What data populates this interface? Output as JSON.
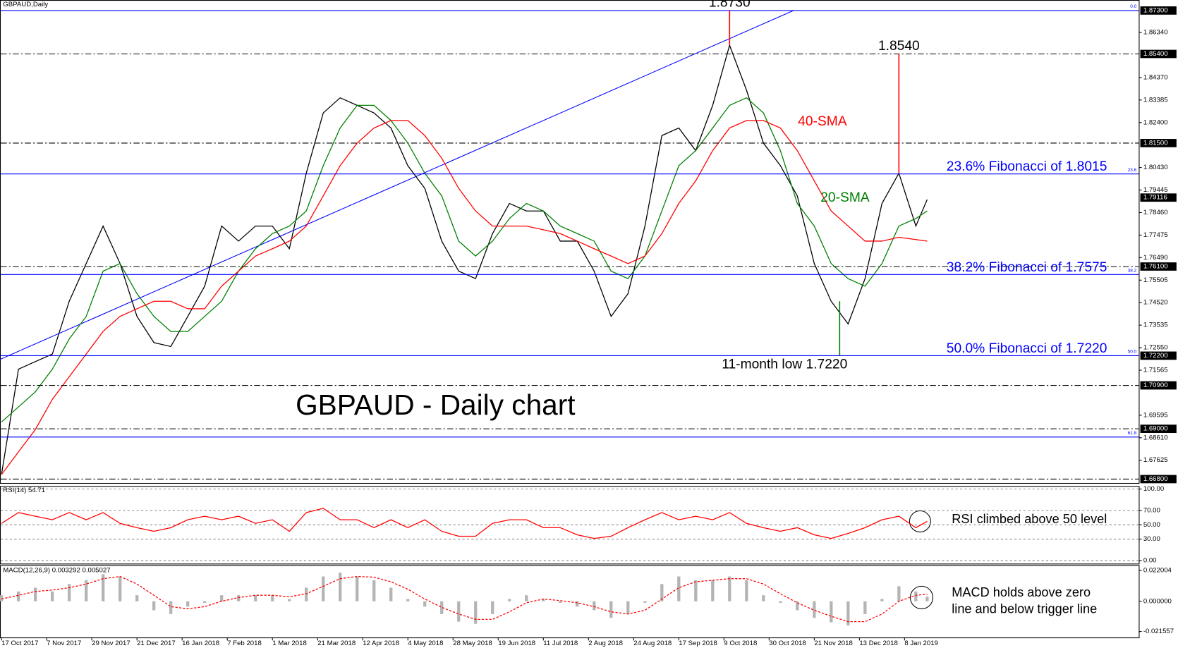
{
  "chart_data": [
    {
      "type": "line",
      "title": "GBPAUD - Daily chart",
      "subtitle": "GBPAUD,Daily",
      "x": [
        0,
        6,
        12,
        18,
        24,
        30,
        36,
        42,
        48,
        54,
        60,
        66,
        72,
        78,
        84,
        90,
        96,
        102,
        108,
        114,
        120,
        126,
        132,
        138,
        144,
        150,
        156,
        162,
        168,
        174,
        180,
        186,
        192,
        198,
        204,
        210,
        216,
        222,
        228,
        234,
        240,
        246,
        252,
        258,
        264,
        270,
        276,
        282,
        288,
        294,
        300,
        306,
        312,
        318,
        324,
        328
      ],
      "xlim": [
        0,
        403
      ],
      "xticks": [
        {
          "value": 0,
          "label": "17 Oct 2017"
        },
        {
          "value": 16,
          "label": "7 Nov 2017"
        },
        {
          "value": 32,
          "label": "29 Nov 2017"
        },
        {
          "value": 48,
          "label": "21 Dec 2017"
        },
        {
          "value": 64,
          "label": "16 Jan 2018"
        },
        {
          "value": 80,
          "label": "7 Feb 2018"
        },
        {
          "value": 96,
          "label": "1 Mar 2018"
        },
        {
          "value": 112,
          "label": "21 Mar 2018"
        },
        {
          "value": 128,
          "label": "12 Apr 2018"
        },
        {
          "value": 144,
          "label": "4 May 2018"
        },
        {
          "value": 160,
          "label": "28 May 2018"
        },
        {
          "value": 176,
          "label": "19 Jun 2018"
        },
        {
          "value": 192,
          "label": "11 Jul 2018"
        },
        {
          "value": 208,
          "label": "2 Aug 2018"
        },
        {
          "value": 224,
          "label": "24 Aug 2018"
        },
        {
          "value": 240,
          "label": "17 Sep 2018"
        },
        {
          "value": 256,
          "label": "9 Oct 2018"
        },
        {
          "value": 272,
          "label": "30 Oct 2018"
        },
        {
          "value": 288,
          "label": "21 Nov 2018"
        },
        {
          "value": 304,
          "label": "13 Dec 2018"
        },
        {
          "value": 320,
          "label": "8 Jan 2019"
        }
      ],
      "ylim": [
        1.6663,
        1.8776
      ],
      "yticks": [
        {
          "value": 1.8634,
          "label": "1.86340"
        },
        {
          "value": 1.8437,
          "label": "1.84370"
        },
        1.83385,
        {
          "value": 1.824,
          "label": "1.82400"
        },
        {
          "value": 1.8043,
          "label": "1.80430"
        },
        1.79445,
        {
          "value": 1.7846,
          "label": "1.78460"
        },
        1.77475,
        {
          "value": 1.7649,
          "label": "1.76490"
        },
        1.75505,
        {
          "value": 1.7452,
          "label": "1.74520"
        },
        1.73535,
        {
          "value": 1.7255,
          "label": "1.72550"
        },
        1.71565,
        1.69595,
        {
          "value": 1.6861,
          "label": "1.68610"
        },
        1.67625
      ],
      "series": [
        {
          "color": "#000000",
          "values": [
            1.67,
            1.7161,
            1.7194,
            1.7227,
            1.7458,
            1.7623,
            1.7787,
            1.7623,
            1.7392,
            1.7277,
            1.726,
            1.7392,
            1.7524,
            1.7787,
            1.7721,
            1.7787,
            1.7787,
            1.7688,
            1.8018,
            1.8282,
            1.8348,
            1.8315,
            1.8282,
            1.8216,
            1.8051,
            1.7952,
            1.7721,
            1.759,
            1.7557,
            1.7754,
            1.7886,
            1.7853,
            1.7853,
            1.7721,
            1.7721,
            1.759,
            1.7392,
            1.7491,
            1.7787,
            1.8183,
            1.8216,
            1.8117,
            1.8315,
            1.8578,
            1.8381,
            1.815,
            1.8051,
            1.7919,
            1.7623,
            1.7458,
            1.7359,
            1.7557,
            1.7886,
            1.8018,
            1.7787,
            1.7903
          ]
        },
        {
          "name": "20-SMA",
          "color": "#008000",
          "values": [
            1.693,
            1.6996,
            1.7062,
            1.7161,
            1.7293,
            1.7392,
            1.759,
            1.7623,
            1.7491,
            1.7392,
            1.7326,
            1.7326,
            1.7392,
            1.7458,
            1.759,
            1.7688,
            1.7754,
            1.7787,
            1.7853,
            1.8051,
            1.8216,
            1.8315,
            1.8315,
            1.8249,
            1.815,
            1.8018,
            1.7919,
            1.7721,
            1.7656,
            1.7721,
            1.782,
            1.7886,
            1.7853,
            1.7787,
            1.7754,
            1.7721,
            1.759,
            1.7557,
            1.7656,
            1.7853,
            1.8051,
            1.8117,
            1.8216,
            1.8315,
            1.8348,
            1.8282,
            1.8117,
            1.7886,
            1.7787,
            1.7623,
            1.7557,
            1.7524,
            1.7623,
            1.7787,
            1.782,
            1.7853
          ]
        },
        {
          "name": "40-SMA",
          "color": "#ff0000",
          "values": [
            1.67,
            1.6799,
            1.6897,
            1.7029,
            1.7128,
            1.7227,
            1.7326,
            1.7392,
            1.7425,
            1.7458,
            1.7458,
            1.7425,
            1.7425,
            1.7524,
            1.759,
            1.7656,
            1.7688,
            1.7721,
            1.7787,
            1.7919,
            1.8051,
            1.815,
            1.8216,
            1.8249,
            1.8249,
            1.8183,
            1.8084,
            1.7952,
            1.7853,
            1.7787,
            1.7787,
            1.7787,
            1.7771,
            1.7754,
            1.7721,
            1.7688,
            1.7656,
            1.7623,
            1.7656,
            1.7754,
            1.7886,
            1.7985,
            1.8117,
            1.8216,
            1.8249,
            1.8249,
            1.8216,
            1.8117,
            1.7985,
            1.7853,
            1.7787,
            1.7721,
            1.7721,
            1.7738,
            1.7728,
            1.7721
          ]
        }
      ],
      "levels": [
        {
          "value": 1.854,
          "label": "1.85400"
        },
        {
          "value": 1.815,
          "label": "1.81500"
        },
        {
          "value": 1.761,
          "label": "1.76100"
        },
        {
          "value": 1.709,
          "label": "1.70900"
        },
        {
          "value": 1.69,
          "label": "1.69000"
        },
        {
          "value": 1.668,
          "label": "1.66800"
        }
      ],
      "fibonacci": [
        {
          "level": "0.0",
          "value": 1.873,
          "price_label": "1.87300"
        },
        {
          "level": "23.6",
          "value": 1.8015,
          "label": "23.6% Fibonacci of 1.8015"
        },
        {
          "level": "38.2",
          "value": 1.7575,
          "label": "38.2% Fibonacci of 1.7575"
        },
        {
          "level": "50.0",
          "value": 1.722,
          "label": "50.0% Fibonacci of 1.7220",
          "price_label": "1.72200"
        },
        {
          "level": "61.8",
          "value": 1.6864
        }
      ],
      "last_price": {
        "value": 1.79116,
        "label": "1.79116"
      },
      "extremes": [
        {
          "x": 258,
          "value": 1.873,
          "label": "1.8730"
        },
        {
          "x": 318,
          "value": 1.854,
          "label": "1.8540"
        },
        {
          "x": 297,
          "value": 1.722,
          "label": "11-month low 1.7220"
        }
      ]
    },
    {
      "type": "line",
      "title": "RSI(14) 54.71",
      "ylim": [
        -4.2,
        104.2
      ],
      "yticks": [
        {
          "value": 100,
          "label": "100.00"
        },
        {
          "value": 70,
          "label": "70.00"
        },
        {
          "value": 50,
          "label": "50.00"
        },
        {
          "value": 30,
          "label": "30.00"
        },
        {
          "value": 0,
          "label": "0.00"
        }
      ],
      "grid": true,
      "series": [
        {
          "color": "#ff0000",
          "values": [
            52,
            67,
            62,
            57,
            67,
            57,
            67,
            52,
            46,
            41,
            46,
            57,
            62,
            57,
            62,
            52,
            57,
            41,
            67,
            73,
            57,
            57,
            46,
            57,
            46,
            57,
            41,
            34,
            34,
            52,
            57,
            57,
            46,
            46,
            36,
            31,
            34,
            46,
            57,
            67,
            57,
            62,
            57,
            67,
            52,
            46,
            41,
            46,
            36,
            31,
            38,
            46,
            57,
            62,
            46,
            54.71
          ]
        }
      ],
      "annotations": [
        "RSI climbed above 50 level"
      ]
    },
    {
      "type": "bar",
      "title": "MACD(12,26,9) 0.003292 0.005027",
      "ylim": [
        -0.0258,
        0.0258
      ],
      "yticks": [
        0.022004,
        {
          "value": 0,
          "label": "0.000000"
        },
        -0.021557
      ],
      "series": [
        {
          "type": "bar",
          "color": "#b4b4b4",
          "values": [
            0.0043,
            0.007,
            0.0097,
            0.007,
            0.0123,
            0.015,
            0.0193,
            0.0177,
            0.0043,
            -0.0064,
            -0.0091,
            -0.0038,
            -0.0011,
            0.0043,
            0.0043,
            0.0043,
            0.0043,
            0.0016,
            0.0097,
            0.0177,
            0.0204,
            0.0177,
            0.015,
            0.0097,
            0.0016,
            -0.0038,
            -0.0091,
            -0.0145,
            -0.0161,
            -0.0091,
            0.0016,
            0.0043,
            0.0016,
            -0.0011,
            -0.0038,
            -0.0064,
            -0.0118,
            -0.0091,
            -0.0011,
            0.0123,
            0.0177,
            0.015,
            0.015,
            0.0177,
            0.015,
            0.0043,
            -0.0011,
            -0.0064,
            -0.0118,
            -0.015,
            -0.0172,
            -0.0091,
            0.0016,
            0.0107,
            0.007,
            0.003292
          ]
        },
        {
          "type": "line",
          "color": "#ff0000",
          "values": [
            0.0016,
            0.0043,
            0.007,
            0.008,
            0.0097,
            0.0123,
            0.0161,
            0.0177,
            0.0123,
            0.0043,
            -0.0038,
            -0.0054,
            -0.0038,
            0,
            0.0027,
            0.0043,
            0.0043,
            0.0032,
            0.0054,
            0.0107,
            0.0161,
            0.0177,
            0.0172,
            0.0139,
            0.0086,
            0.0016,
            -0.0043,
            -0.0091,
            -0.0129,
            -0.0129,
            -0.0075,
            -0.0011,
            0.0016,
            0.0005,
            -0.0011,
            -0.0038,
            -0.0075,
            -0.0091,
            -0.0064,
            0.0016,
            0.0097,
            0.0139,
            0.015,
            0.0161,
            0.0161,
            0.0123,
            0.0054,
            -0.0011,
            -0.0064,
            -0.0107,
            -0.0145,
            -0.0145,
            -0.0091,
            0,
            0.0043,
            0.005027
          ]
        }
      ],
      "annotations": [
        "MACD holds above zero",
        "line and below trigger line"
      ]
    }
  ]
}
